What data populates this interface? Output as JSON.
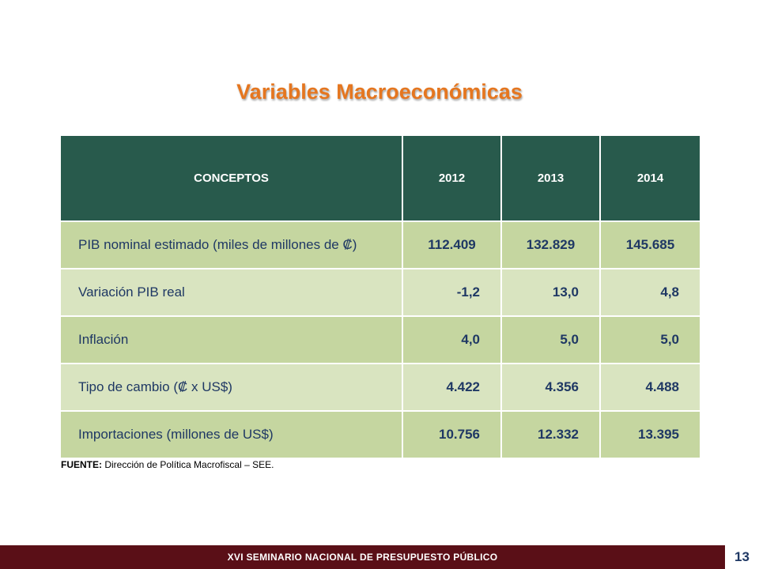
{
  "title": "Variables Macroeconómicas",
  "table": {
    "headers": [
      "CONCEPTOS",
      "2012",
      "2013",
      "2014"
    ],
    "rows": [
      {
        "label": "PIB nominal estimado (miles de millones de ₡)",
        "values": [
          "112.409",
          "132.829",
          "145.685"
        ]
      },
      {
        "label": "Variación PIB real",
        "values": [
          "-1,2",
          "13,0",
          "4,8"
        ]
      },
      {
        "label": "Inflación",
        "values": [
          "4,0",
          "5,0",
          "5,0"
        ]
      },
      {
        "label": "Tipo de cambio (₡ x US$)",
        "values": [
          "4.422",
          "4.356",
          "4.488"
        ]
      },
      {
        "label": "Importaciones (millones de US$)",
        "values": [
          "10.756",
          "12.332",
          "13.395"
        ]
      }
    ]
  },
  "source": {
    "label": "FUENTE:",
    "text": " Dirección de Política Macrofiscal – SEE."
  },
  "footer": {
    "text": "XVI SEMINARIO NACIONAL DE PRESUPUESTO PÚBLICO",
    "page_number": "13"
  },
  "colors": {
    "title": "#e5761f",
    "header_bg": "#285a4c",
    "row_dark": "#c5d6a0",
    "row_light": "#d9e4c0",
    "footer_bg": "#5a0f17",
    "text": "#1f3864"
  }
}
